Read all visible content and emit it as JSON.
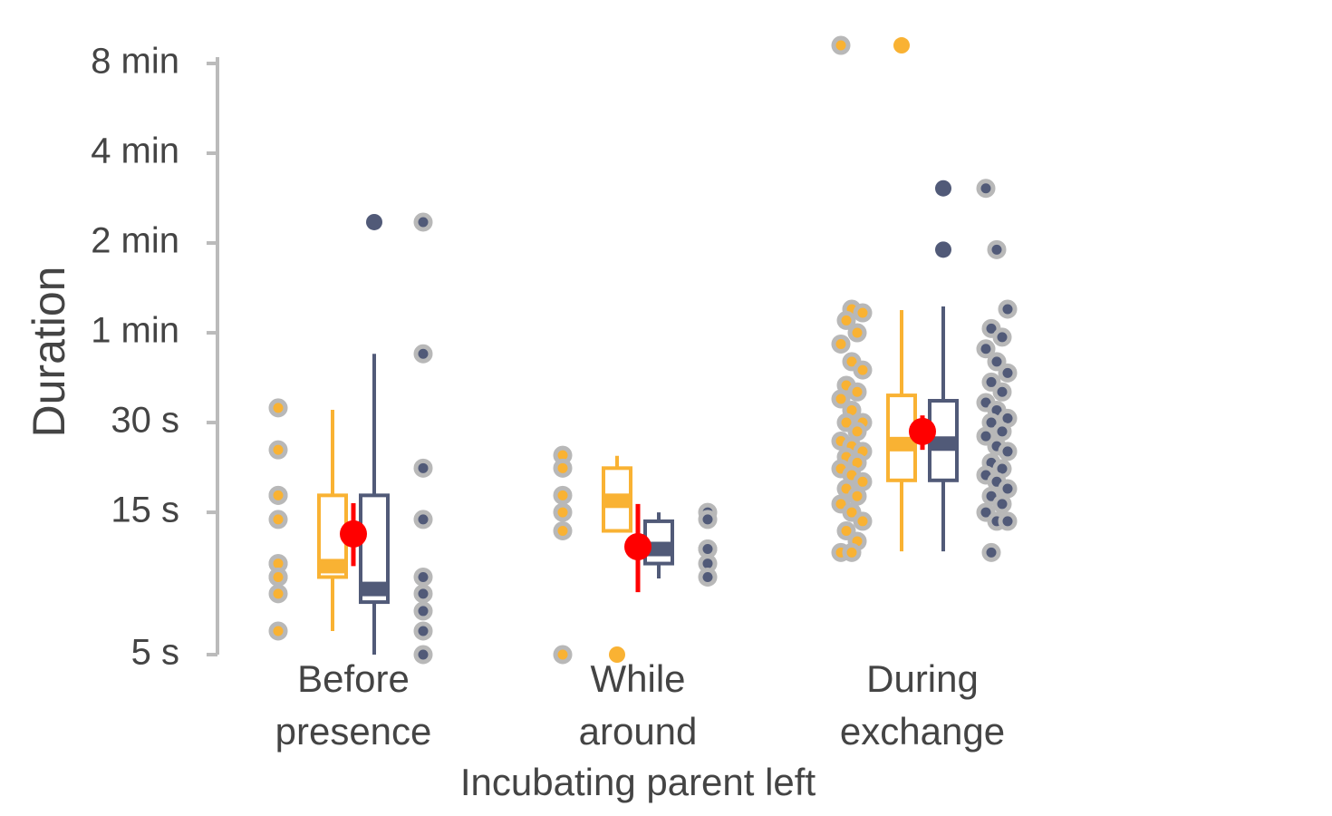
{
  "chart_data": {
    "type": "box",
    "y_label": "Duration",
    "x_label": "Incubating parent left",
    "log_scale": true,
    "ylim": [
      5,
      480
    ],
    "yticks": [
      {
        "value": 5,
        "label": "5 s"
      },
      {
        "value": 15,
        "label": "15 s"
      },
      {
        "value": 30,
        "label": "30 s"
      },
      {
        "value": 60,
        "label": "1 min"
      },
      {
        "value": 120,
        "label": "2 min"
      },
      {
        "value": 240,
        "label": "4 min"
      },
      {
        "value": 480,
        "label": "8 min"
      }
    ],
    "categories": [
      "Before presence",
      "While around",
      "During exchange"
    ],
    "colors": [
      "#f9b233",
      "#515a78"
    ],
    "mean_color": "#ff0000",
    "groups": [
      {
        "points": [
          33.6,
          24.3,
          17.1,
          17.1,
          14.2,
          10.1,
          10.1,
          9.1,
          9.1,
          8.0,
          6.0
        ],
        "box": {
          "whislo": 6.0,
          "q1": 9.1,
          "med": 9.9,
          "q3": 17.1,
          "whishi": 33.1,
          "fliers": []
        },
        "box2": {
          "whislo": 5.0,
          "q1": 7.5,
          "med": 8.3,
          "q3": 17.1,
          "whishi": 51,
          "fliers": [
            141
          ]
        },
        "points2": [
          141,
          51,
          21.1,
          14.2,
          9.1,
          8.0,
          7.0,
          6.0,
          5.0
        ],
        "mean": 12.7,
        "mean_err": [
          9.9,
          16.1
        ]
      },
      {
        "points": [
          23.3,
          21.1,
          17.1,
          15.0,
          13.0,
          5.0
        ],
        "box": {
          "whislo": 13.0,
          "q1": 13.0,
          "med": 16.4,
          "q3": 21.1,
          "whishi": 23.2,
          "fliers": [
            5.0
          ]
        },
        "box2": {
          "whislo": 9.0,
          "q1": 10.1,
          "med": 11.3,
          "q3": 14.0,
          "whishi": 15.0,
          "fliers": []
        },
        "points2": [
          15.0,
          14.2,
          11.3,
          11.3,
          10.1,
          9.1
        ],
        "mean": 11.5,
        "mean_err": [
          8.1,
          16.0
        ]
      },
      {
        "points": [
          552,
          72,
          70,
          66,
          60,
          55,
          48,
          45,
          40,
          38,
          36,
          33,
          30,
          30,
          28,
          26,
          25,
          24,
          23,
          22,
          21,
          20,
          19,
          18,
          17,
          16,
          15,
          14,
          13,
          12,
          11,
          11
        ],
        "box": {
          "whislo": 11.1,
          "q1": 19.2,
          "med": 25.4,
          "q3": 37,
          "whishi": 71.5,
          "fliers": [
            552
          ]
        },
        "box2": {
          "whislo": 11.1,
          "q1": 19.2,
          "med": 25.5,
          "q3": 35.5,
          "whishi": 73.5,
          "fliers": [
            183,
            114
          ]
        },
        "points2": [
          183,
          114,
          72,
          62,
          58,
          53,
          48,
          44,
          41,
          38,
          35,
          33,
          31,
          30,
          28,
          27,
          25,
          24,
          22,
          21,
          20,
          19,
          18,
          17,
          16,
          15,
          14,
          14,
          11
        ],
        "mean": 28,
        "mean_err": [
          24.3,
          31.7
        ]
      }
    ]
  }
}
